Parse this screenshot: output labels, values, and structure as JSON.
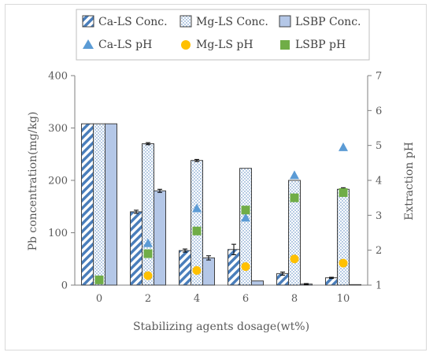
{
  "chart_data": {
    "type": "bar",
    "xlabel": "Stabilizing agents dosage(wt%)",
    "ylabel": "Pb concentration(mg/kg)",
    "y2label": "Extraction pH",
    "categories": [
      "0",
      "2",
      "4",
      "6",
      "8",
      "10"
    ],
    "ylim": [
      0,
      400
    ],
    "y_ticks": [
      "0",
      "100",
      "200",
      "300",
      "400"
    ],
    "y2lim": [
      1,
      7
    ],
    "y2_ticks": [
      "1",
      "2",
      "3",
      "4",
      "5",
      "6",
      "7"
    ],
    "grid": false,
    "legend_position": "top",
    "bar_series": [
      {
        "name": "Ca-LS Conc.",
        "pattern": "diagonal-stripes",
        "color": "#4a7ebb",
        "values": [
          308,
          140,
          66,
          68,
          22,
          14
        ],
        "errors": [
          0,
          3,
          3,
          10,
          3,
          1
        ]
      },
      {
        "name": "Mg-LS Conc.",
        "pattern": "dots",
        "color": "#4a7ebb",
        "values": [
          308,
          270,
          238,
          223,
          200,
          183
        ],
        "errors": [
          0,
          2,
          2,
          0,
          0,
          3
        ]
      },
      {
        "name": "LSBP Conc.",
        "pattern": "solid",
        "color": "#b4c7e7",
        "values": [
          308,
          180,
          52,
          8,
          2,
          1
        ],
        "errors": [
          0,
          3,
          4,
          0,
          1,
          0
        ]
      }
    ],
    "marker_series": [
      {
        "name": "Ca-LS pH",
        "marker": "triangle",
        "color": "#5b9bd5",
        "values": [
          null,
          2.2,
          3.2,
          2.93,
          4.15,
          4.95
        ]
      },
      {
        "name": "Mg-LS pH",
        "marker": "circle",
        "color": "#ffc000",
        "values": [
          null,
          1.27,
          1.42,
          1.53,
          1.75,
          1.63
        ]
      },
      {
        "name": "LSBP pH",
        "marker": "square",
        "color": "#70ad47",
        "values": [
          1.15,
          1.9,
          2.55,
          3.15,
          3.5,
          3.65
        ]
      }
    ]
  }
}
